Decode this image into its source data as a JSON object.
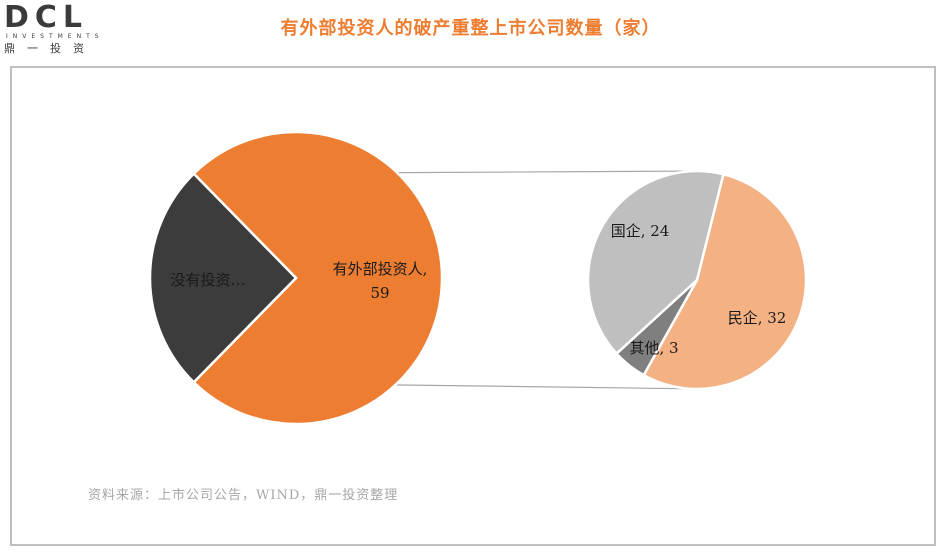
{
  "logo": {
    "mark": "DCL",
    "sub": "INVESTMENTS",
    "cn": "鼎一投资"
  },
  "chart_data": [
    {
      "type": "pie",
      "title": "有外部投资人的破产重整上市公司数量（家）",
      "slices": [
        {
          "label": "有外部投资人,",
          "value": 59,
          "display_value": "59",
          "color": "#ED7D31"
        },
        {
          "label": "没有投资…",
          "value": 20,
          "display_value": "",
          "color": "#3C3C3C"
        }
      ]
    },
    {
      "type": "pie",
      "title": "",
      "slices": [
        {
          "label": "民企, 32",
          "value": 32,
          "color": "#F4B183"
        },
        {
          "label": "其他, 3",
          "value": 3,
          "color": "#7F7F7F"
        },
        {
          "label": "国企, 24",
          "value": 24,
          "color": "#BFBFBF"
        }
      ]
    }
  ],
  "source": "资料来源：上市公司公告，WIND，鼎一投资整理"
}
